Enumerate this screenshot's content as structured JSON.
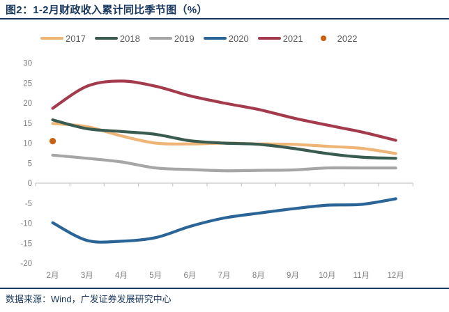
{
  "title": "图2：1-2月财政收入累计同比季节图（%）",
  "footer": {
    "source": "数据来源：Wind，广发证券发展研究中心"
  },
  "colors": {
    "accent_navy": "#17375E",
    "axis_line": "#C6C6C6",
    "tick_label": "#7F7F7F",
    "legend_text": "#595959"
  },
  "chart_data": {
    "type": "line",
    "title": "1-2月财政收入累计同比季节图（%）",
    "xlabel": "",
    "ylabel": "",
    "categories": [
      "2月",
      "3月",
      "4月",
      "5月",
      "6月",
      "7月",
      "8月",
      "9月",
      "10月",
      "11月",
      "12月"
    ],
    "yticks": [
      "30",
      "25",
      "20",
      "15",
      "10",
      "5",
      "0",
      "-5",
      "-10",
      "-15",
      "-20"
    ],
    "ylim": [
      -20,
      30
    ],
    "grid": false,
    "legend_position": "top",
    "series": [
      {
        "name": "2017",
        "type": "line",
        "color": "#EFB577",
        "values": [
          14.9,
          14.1,
          11.8,
          10.0,
          9.8,
          10.0,
          9.8,
          9.7,
          9.2,
          8.7,
          7.4
        ]
      },
      {
        "name": "2018",
        "type": "line",
        "color": "#3A5C50",
        "values": [
          15.8,
          13.6,
          12.9,
          12.2,
          10.6,
          10.0,
          9.7,
          8.7,
          7.4,
          6.5,
          6.2
        ]
      },
      {
        "name": "2019",
        "type": "line",
        "color": "#A6A6A6",
        "values": [
          7.0,
          6.2,
          5.3,
          3.8,
          3.4,
          3.1,
          3.2,
          3.3,
          3.8,
          3.8,
          3.8
        ]
      },
      {
        "name": "2020",
        "type": "line",
        "color": "#2B6598",
        "values": [
          -9.9,
          -14.3,
          -14.5,
          -13.6,
          -10.8,
          -8.7,
          -7.5,
          -6.4,
          -5.5,
          -5.3,
          -3.9
        ]
      },
      {
        "name": "2021",
        "type": "line",
        "color": "#A33B4D",
        "values": [
          18.7,
          24.2,
          25.5,
          24.2,
          21.8,
          20.0,
          18.4,
          16.3,
          14.5,
          12.8,
          10.7
        ]
      },
      {
        "name": "2022",
        "type": "point",
        "color": "#C96112",
        "values": [
          10.5
        ]
      }
    ]
  }
}
